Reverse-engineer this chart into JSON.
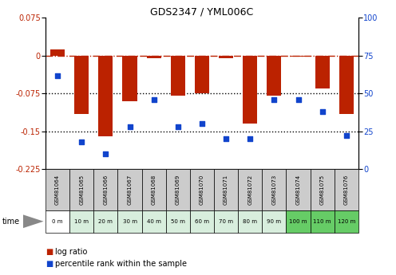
{
  "title": "GDS2347 / YML006C",
  "samples": [
    "GSM81064",
    "GSM81065",
    "GSM81066",
    "GSM81067",
    "GSM81068",
    "GSM81069",
    "GSM81070",
    "GSM81071",
    "GSM81072",
    "GSM81073",
    "GSM81074",
    "GSM81075",
    "GSM81076"
  ],
  "time_labels": [
    "0 m",
    "10 m",
    "20 m",
    "30 m",
    "40 m",
    "50 m",
    "60 m",
    "70 m",
    "80 m",
    "90 m",
    "100 m",
    "110 m",
    "120 m"
  ],
  "log_ratio": [
    0.012,
    -0.115,
    -0.16,
    -0.09,
    -0.005,
    -0.08,
    -0.075,
    -0.005,
    -0.135,
    -0.08,
    -0.002,
    -0.065,
    -0.115
  ],
  "percentile_rank": [
    62,
    18,
    10,
    28,
    46,
    28,
    30,
    20,
    20,
    46,
    46,
    38,
    22
  ],
  "ylim_left": [
    -0.225,
    0.075
  ],
  "ylim_right": [
    0,
    100
  ],
  "yticks_left": [
    0.075,
    0,
    -0.075,
    -0.15,
    -0.225
  ],
  "yticks_right": [
    100,
    75,
    50,
    25,
    0
  ],
  "bar_color": "#bb2200",
  "scatter_color": "#1144cc",
  "dashed_line_color": "#bb2200",
  "dotted_line_color": "#000000",
  "sample_bg_color": "#cccccc",
  "time_bg_white": "#ffffff",
  "time_bg_lightgreen": "#d8eedd",
  "time_bg_green": "#66cc66",
  "bar_width": 0.6
}
